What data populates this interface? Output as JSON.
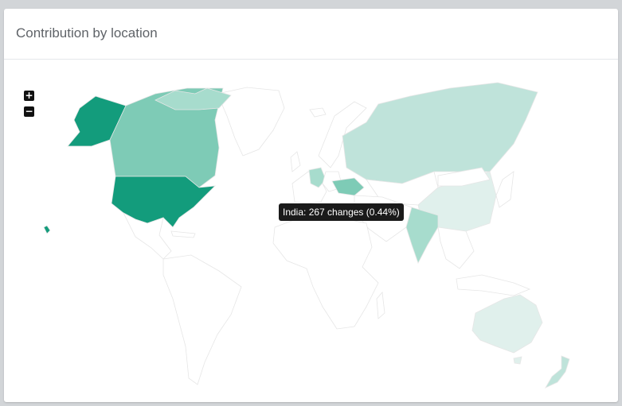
{
  "card": {
    "title": "Contribution by location"
  },
  "zoom": {
    "in_label": "+",
    "out_label": "−"
  },
  "tooltip": {
    "text": "India: 267 changes (0.44%)"
  },
  "colors": {
    "level_top": "#139c7c",
    "level_high": "#7ecbb6",
    "level_mid": "#a7dccd",
    "level_low": "#bfe3da",
    "level_faint": "#e0f0ec",
    "no_data": "#ffffff",
    "border": "#e6e6e6"
  },
  "highlighted_regions": [
    {
      "name": "United States",
      "level": "top"
    },
    {
      "name": "Canada",
      "level": "high"
    },
    {
      "name": "Russia",
      "level": "low"
    },
    {
      "name": "China",
      "level": "faint"
    },
    {
      "name": "India",
      "level": "mid"
    },
    {
      "name": "Australia",
      "level": "faint"
    },
    {
      "name": "Germany",
      "level": "mid"
    },
    {
      "name": "Ukraine",
      "level": "high"
    },
    {
      "name": "New Zealand",
      "level": "low"
    }
  ]
}
